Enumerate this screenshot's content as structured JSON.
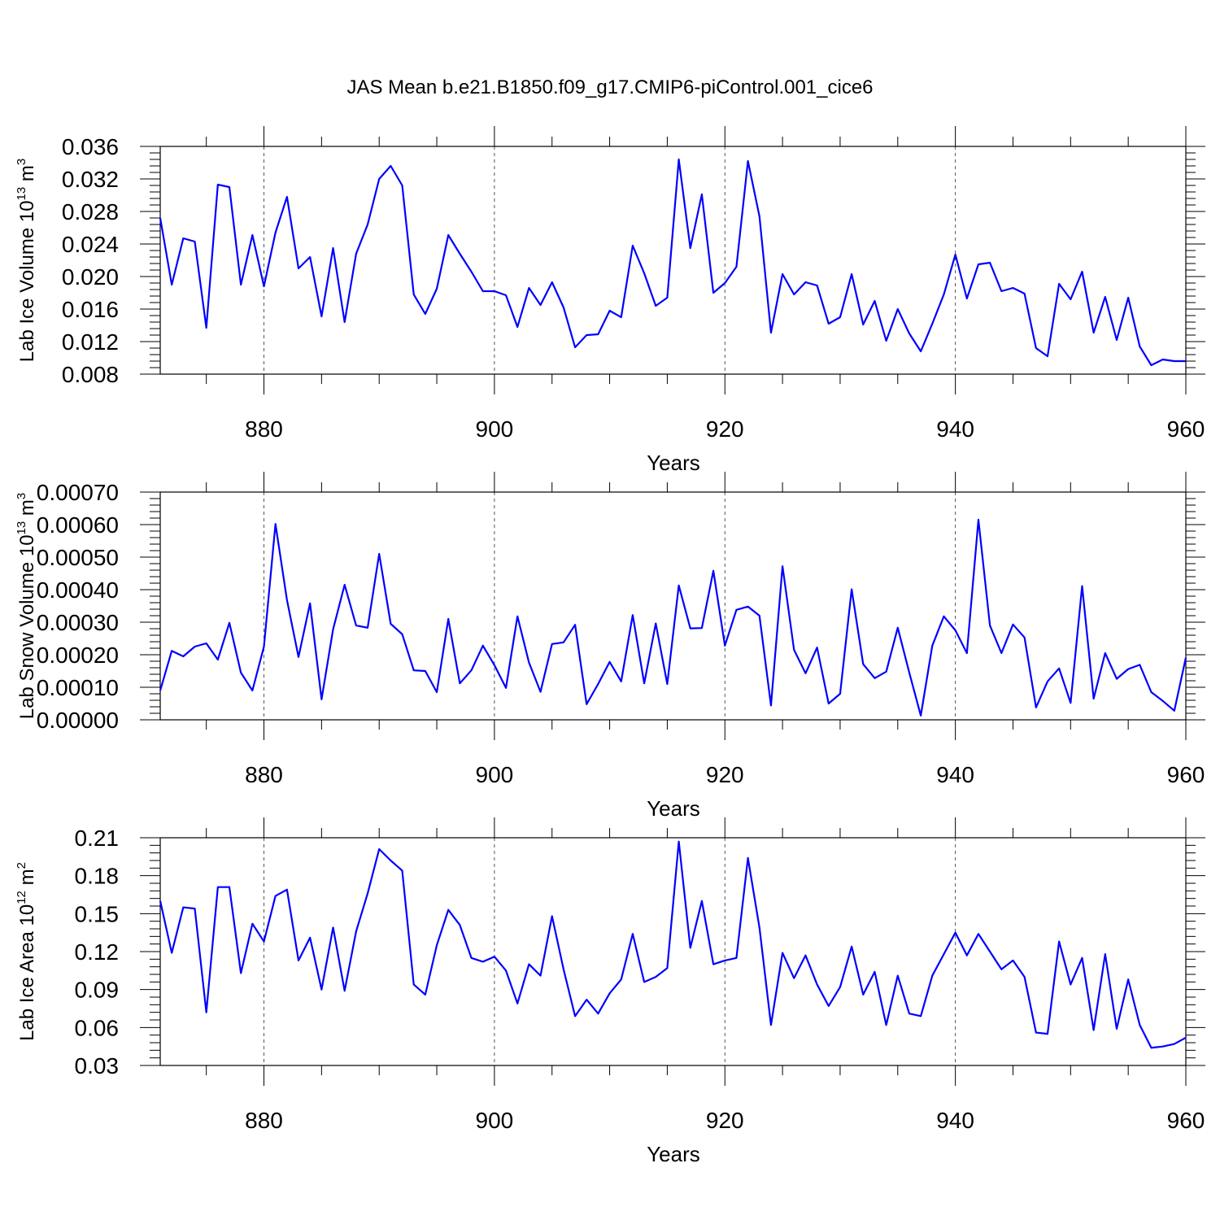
{
  "figure": {
    "title": "JAS Mean b.e21.B1850.f09_g17.CMIP6-piControl.001_cice6",
    "line_color": "#0000ff"
  },
  "chart_data": [
    {
      "type": "line",
      "title": "JAS Mean b.e21.B1850.f09_g17.CMIP6-piControl.001_cice6",
      "xlabel": "Years",
      "ylabel": "Lab Ice Volume 10",
      "ylabel_exp": "13",
      "ylabel_unit": " m",
      "ylabel_unit_exp": "3",
      "xlim": [
        871,
        960
      ],
      "ylim": [
        0.008,
        0.036
      ],
      "xticks": [
        880,
        900,
        920,
        940,
        960
      ],
      "yticks": [
        0.008,
        0.012,
        0.016,
        0.02,
        0.024,
        0.028,
        0.032,
        0.036
      ],
      "ytick_labels": [
        "0.008",
        "0.012",
        "0.016",
        "0.020",
        "0.024",
        "0.028",
        "0.032",
        "0.036"
      ],
      "grid_x": [
        880,
        900,
        920,
        940
      ],
      "x_start": 871,
      "series": [
        {
          "name": "Lab Ice Volume",
          "color": "#0000ff",
          "values": [
            0.0272,
            0.019,
            0.0247,
            0.0243,
            0.0137,
            0.0313,
            0.031,
            0.019,
            0.0251,
            0.0188,
            0.0254,
            0.0298,
            0.021,
            0.0224,
            0.0151,
            0.0235,
            0.0144,
            0.0228,
            0.0264,
            0.032,
            0.0336,
            0.0312,
            0.0178,
            0.0154,
            0.0185,
            0.0251,
            0.0228,
            0.0206,
            0.0182,
            0.0182,
            0.0177,
            0.0138,
            0.0186,
            0.0165,
            0.0193,
            0.0162,
            0.0113,
            0.0128,
            0.0129,
            0.0158,
            0.015,
            0.0238,
            0.0204,
            0.0164,
            0.0174,
            0.0344,
            0.0235,
            0.0301,
            0.018,
            0.0192,
            0.0212,
            0.0342,
            0.0274,
            0.0131,
            0.0203,
            0.0178,
            0.0193,
            0.0189,
            0.0142,
            0.015,
            0.0203,
            0.0141,
            0.017,
            0.0121,
            0.016,
            0.013,
            0.0108,
            0.0142,
            0.0178,
            0.0227,
            0.0173,
            0.0215,
            0.0217,
            0.0182,
            0.0186,
            0.0179,
            0.0112,
            0.0102,
            0.0191,
            0.0172,
            0.0206,
            0.0131,
            0.0175,
            0.0122,
            0.0174,
            0.0114,
            0.0091,
            0.0098,
            0.0096,
            0.0096
          ]
        }
      ]
    },
    {
      "type": "line",
      "xlabel": "Years",
      "ylabel": "Lab Snow Volume 10",
      "ylabel_exp": "13",
      "ylabel_unit": " m",
      "ylabel_unit_exp": "3",
      "xlim": [
        871,
        960
      ],
      "ylim": [
        0.0,
        0.0007
      ],
      "xticks": [
        880,
        900,
        920,
        940,
        960
      ],
      "yticks": [
        0.0,
        0.0001,
        0.0002,
        0.0003,
        0.0004,
        0.0005,
        0.0006,
        0.0007
      ],
      "ytick_labels": [
        "0.00000",
        "0.00010",
        "0.00020",
        "0.00030",
        "0.00040",
        "0.00050",
        "0.00060",
        "0.00070"
      ],
      "grid_x": [
        880,
        900,
        920,
        940
      ],
      "x_start": 871,
      "series": [
        {
          "name": "Lab Snow Volume",
          "color": "#0000ff",
          "values": [
            9e-05,
            0.000212,
            0.000195,
            0.000225,
            0.000235,
            0.000185,
            0.000298,
            0.000145,
            9e-05,
            0.000225,
            0.000602,
            0.000368,
            0.000193,
            0.000358,
            6.3e-05,
            0.000278,
            0.000415,
            0.00029,
            0.000283,
            0.00051,
            0.000295,
            0.000263,
            0.000152,
            0.00015,
            8.5e-05,
            0.00031,
            0.000112,
            0.000152,
            0.000228,
            0.000168,
            9.8e-05,
            0.000318,
            0.000176,
            8.6e-05,
            0.000233,
            0.000238,
            0.000292,
            4.8e-05,
            0.00011,
            0.000178,
            0.000118,
            0.000322,
            0.000112,
            0.000296,
            0.00011,
            0.000413,
            0.000281,
            0.000282,
            0.000458,
            0.000228,
            0.000338,
            0.000348,
            0.00032,
            4.4e-05,
            0.000472,
            0.000215,
            0.000143,
            0.000222,
            5e-05,
            8e-05,
            0.000401,
            0.000171,
            0.000128,
            0.000148,
            0.000283,
            0.000145,
            1.3e-05,
            0.000228,
            0.000318,
            0.000275,
            0.000205,
            0.000615,
            0.00029,
            0.000205,
            0.000293,
            0.000253,
            3.8e-05,
            0.000118,
            0.000158,
            5.2e-05,
            0.000411,
            6.5e-05,
            0.000205,
            0.000126,
            0.000156,
            0.000169,
            8.5e-05,
            5.8e-05,
            2.8e-05,
            0.000191
          ]
        }
      ]
    },
    {
      "type": "line",
      "xlabel": "Years",
      "ylabel": "Lab Ice Area 10",
      "ylabel_exp": "12",
      "ylabel_unit": " m",
      "ylabel_unit_exp": "2",
      "xlim": [
        871,
        960
      ],
      "ylim": [
        0.03,
        0.21
      ],
      "xticks": [
        880,
        900,
        920,
        940,
        960
      ],
      "yticks": [
        0.03,
        0.06,
        0.09,
        0.12,
        0.15,
        0.18,
        0.21
      ],
      "ytick_labels": [
        "0.03",
        "0.06",
        "0.09",
        "0.12",
        "0.15",
        "0.18",
        "0.21"
      ],
      "grid_x": [
        880,
        900,
        920,
        940
      ],
      "x_start": 871,
      "series": [
        {
          "name": "Lab Ice Area",
          "color": "#0000ff",
          "values": [
            0.16,
            0.119,
            0.155,
            0.154,
            0.072,
            0.171,
            0.171,
            0.103,
            0.142,
            0.128,
            0.164,
            0.169,
            0.113,
            0.131,
            0.09,
            0.139,
            0.089,
            0.136,
            0.166,
            0.201,
            0.192,
            0.184,
            0.094,
            0.086,
            0.125,
            0.153,
            0.141,
            0.115,
            0.112,
            0.116,
            0.105,
            0.079,
            0.11,
            0.101,
            0.148,
            0.106,
            0.069,
            0.082,
            0.071,
            0.087,
            0.098,
            0.134,
            0.096,
            0.1,
            0.107,
            0.207,
            0.123,
            0.16,
            0.11,
            0.113,
            0.115,
            0.194,
            0.139,
            0.062,
            0.119,
            0.099,
            0.117,
            0.094,
            0.077,
            0.092,
            0.124,
            0.086,
            0.104,
            0.062,
            0.101,
            0.071,
            0.069,
            0.101,
            0.118,
            0.135,
            0.117,
            0.134,
            0.12,
            0.106,
            0.113,
            0.1,
            0.056,
            0.055,
            0.128,
            0.094,
            0.115,
            0.058,
            0.118,
            0.059,
            0.098,
            0.062,
            0.044,
            0.045,
            0.047,
            0.052
          ]
        }
      ]
    }
  ]
}
